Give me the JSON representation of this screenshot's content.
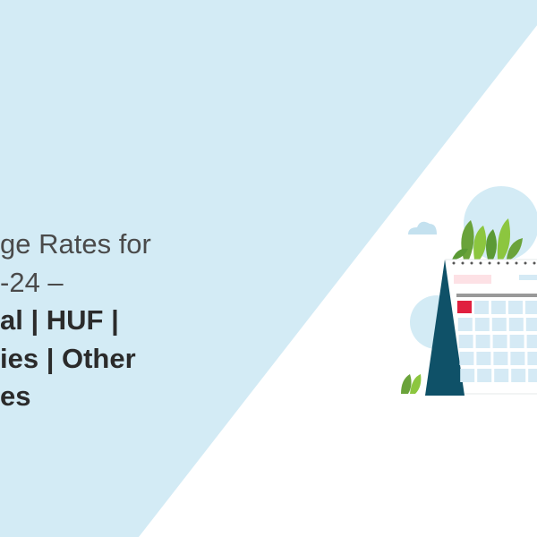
{
  "banner": {
    "headline_lines": [
      {
        "text": "ge Rates for",
        "weight": "light"
      },
      {
        "text": "-24 –",
        "weight": "light"
      },
      {
        "text": "al | HUF |",
        "weight": "bold"
      },
      {
        "text": "ies | Other",
        "weight": "bold"
      },
      {
        "text": "es",
        "weight": "bold"
      }
    ],
    "illustration": "desk-calendar-with-plants",
    "colors": {
      "background_blue": "#d3ebf5",
      "background_white": "#ffffff",
      "calendar_stand": "#0f5168",
      "highlight_date": "#e0203f",
      "calendar_cells": "#d5eaf5",
      "leaf_green": "#7cb83a"
    }
  }
}
